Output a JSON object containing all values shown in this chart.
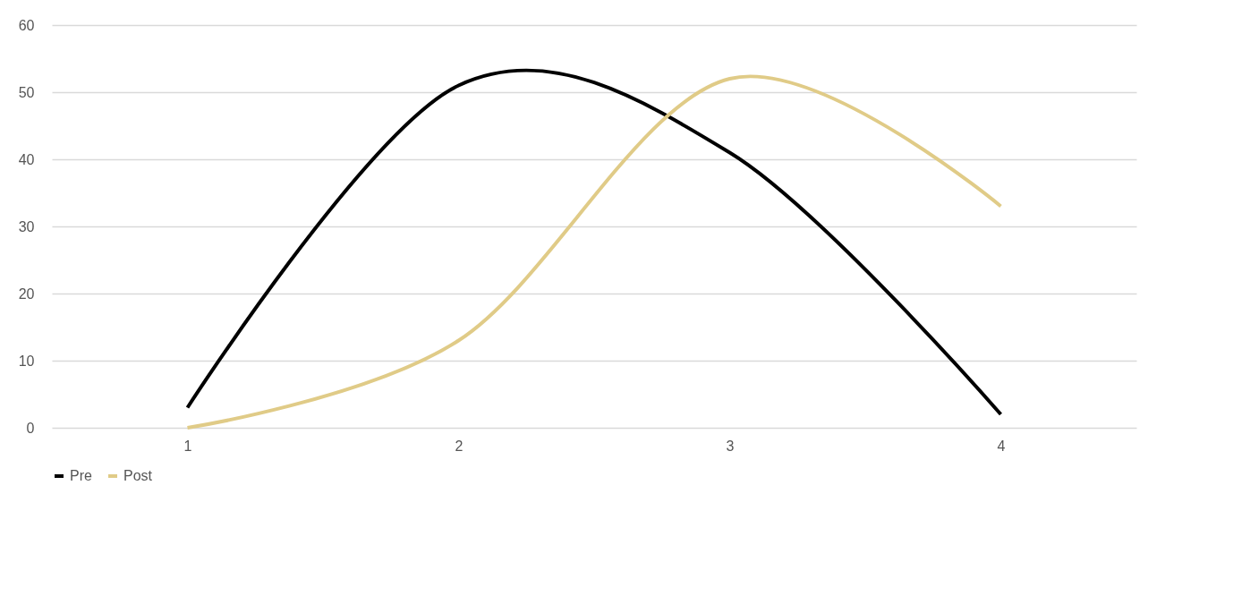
{
  "chart_data": {
    "type": "line",
    "categories": [
      "1",
      "2",
      "3",
      "4"
    ],
    "series": [
      {
        "name": "Pre",
        "color": "#000000",
        "values": [
          3,
          51,
          41,
          2
        ]
      },
      {
        "name": "Post",
        "color": "#e0cb87",
        "values": [
          0,
          13,
          52,
          33
        ]
      }
    ],
    "ylim": [
      0,
      60
    ],
    "yticks": [
      0,
      10,
      20,
      30,
      40,
      50,
      60
    ],
    "grid": "y",
    "legend": "bottom",
    "marker": "none",
    "line_style": "solid"
  }
}
